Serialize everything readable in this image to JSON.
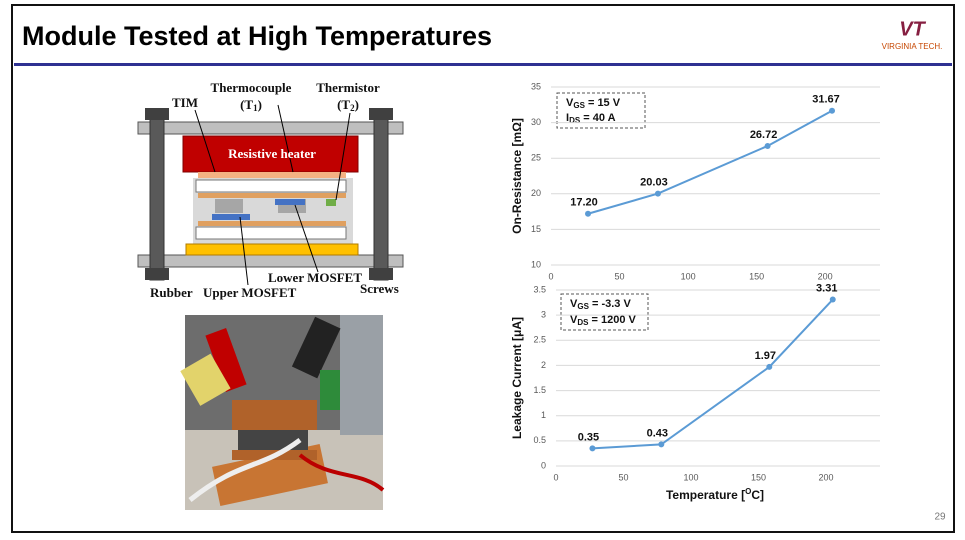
{
  "header": {
    "title": "Module Tested at High Temperatures",
    "logo_mark": "VT",
    "logo_text": "VIRGINIA TECH."
  },
  "page_number": "29",
  "diagram": {
    "thermocouple": "Thermocouple",
    "thermocouple_sub": {
      "open": "(T",
      "sub": "1",
      "close": ")"
    },
    "thermistor": "Thermistor",
    "thermistor_sub": {
      "open": "(T",
      "sub": "2",
      "close": ")"
    },
    "tim": "TIM",
    "heater": "Resistive heater",
    "lower_mosfet": "Lower MOSFET",
    "rubber": "Rubber",
    "upper_mosfet": "Upper MOSFET",
    "screws": "Screws"
  },
  "chart_data": [
    {
      "type": "line",
      "y_label": "On-Resistance [mΩ]",
      "annotation": [
        {
          "main": "V",
          "sub": "GS",
          "rest": " = 15 V"
        },
        {
          "main": "I",
          "sub": "DS",
          "rest": " = 40 A"
        }
      ],
      "x": [
        27,
        78,
        158,
        205
      ],
      "xlim": [
        0,
        240
      ],
      "xticks": [
        0,
        50,
        100,
        150,
        200
      ],
      "ylim": [
        10,
        35
      ],
      "yticks": [
        10,
        15,
        20,
        25,
        30,
        35
      ],
      "grid": true,
      "series": [
        {
          "color": "#5b9bd5",
          "values": [
            17.2,
            20.03,
            26.72,
            31.67
          ],
          "value_labels": [
            "17.20",
            "20.03",
            "26.72",
            "31.67"
          ]
        }
      ]
    },
    {
      "type": "line",
      "y_label": "Leakage Current [μA]",
      "x_label": {
        "text": "Temperature [",
        "sup": "O",
        "rest": "C]"
      },
      "annotation": [
        {
          "main": "V",
          "sub": "GS",
          "rest": " = -3.3 V"
        },
        {
          "main": "V",
          "sub": "DS",
          "rest": " = 1200 V"
        }
      ],
      "x": [
        27,
        78,
        158,
        205
      ],
      "xlim": [
        0,
        240
      ],
      "xticks": [
        0,
        50,
        100,
        150,
        200
      ],
      "ylim": [
        0,
        3.5
      ],
      "yticks": [
        0,
        0.5,
        1,
        1.5,
        2,
        2.5,
        3,
        3.5
      ],
      "grid": true,
      "series": [
        {
          "color": "#5b9bd5",
          "values": [
            0.35,
            0.43,
            1.97,
            3.31
          ],
          "value_labels": [
            "0.35",
            "0.43",
            "1.97",
            "3.31"
          ]
        }
      ]
    }
  ]
}
